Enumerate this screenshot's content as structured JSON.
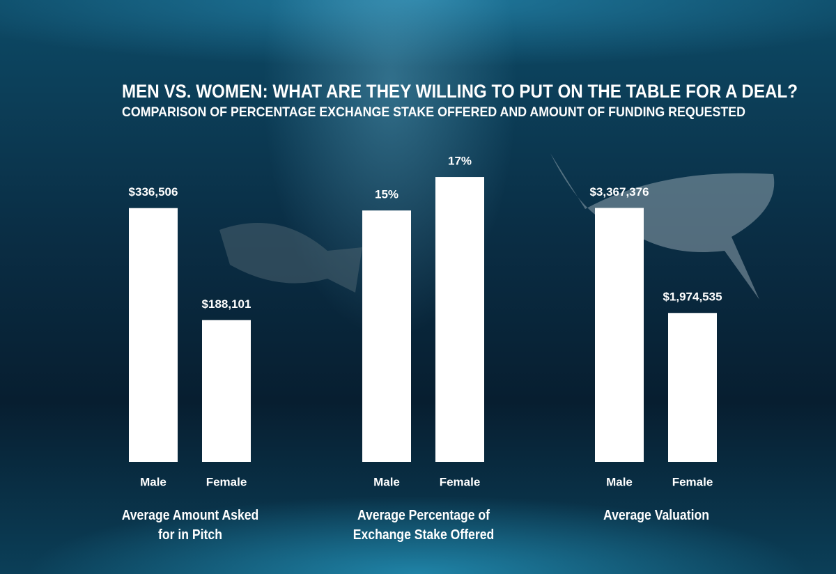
{
  "title": "MEN VS. WOMEN: WHAT ARE THEY WILLING TO PUT ON THE TABLE FOR A DEAL?",
  "subtitle": "COMPARISON OF PERCENTAGE EXCHANGE STAKE OFFERED AND AMOUNT OF FUNDING REQUESTED",
  "chart_data": [
    {
      "type": "bar",
      "title": "Average Amount Asked for in Pitch",
      "categories": [
        "Male",
        "Female"
      ],
      "values": [
        336506,
        188101
      ],
      "value_labels": [
        "$336,506",
        "$188,101"
      ],
      "color": "#ffffff",
      "ylim": [
        0,
        400000
      ]
    },
    {
      "type": "bar",
      "title": "Average Percentage of Exchange Stake Offered",
      "categories": [
        "Male",
        "Female"
      ],
      "values": [
        15,
        17
      ],
      "value_labels": [
        "15%",
        "17%"
      ],
      "color": "#ffffff",
      "ylim": [
        0,
        18
      ]
    },
    {
      "type": "bar",
      "title": "Average Valuation",
      "categories": [
        "Male",
        "Female"
      ],
      "values": [
        3367376,
        1974535
      ],
      "value_labels": [
        "$3,367,376",
        "$1,974,535"
      ],
      "color": "#ffffff",
      "ylim": [
        0,
        4000000
      ]
    }
  ]
}
